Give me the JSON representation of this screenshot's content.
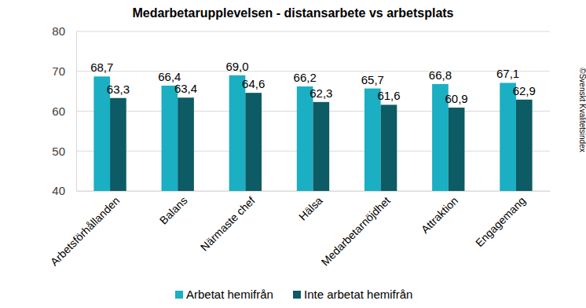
{
  "chart_data": {
    "type": "bar",
    "title": "Medarbetarupplevelsen - distansarbete vs arbetsplats",
    "categories": [
      "Arbetsförhållanden",
      "Balans",
      "Närmaste chef",
      "Hälsa",
      "Medarbetarnöjdhet",
      "Attraktion",
      "Engagemang"
    ],
    "series": [
      {
        "name": "Arbetat hemifrån",
        "color": "#1aafc3",
        "values": [
          68.7,
          66.4,
          69.0,
          66.2,
          65.7,
          66.8,
          67.1
        ],
        "value_labels": [
          "68,7",
          "66,4",
          "69,0",
          "66,2",
          "65,7",
          "66,8",
          "67,1"
        ]
      },
      {
        "name": "Inte arbetat hemifrån",
        "color": "#0d5b64",
        "values": [
          63.3,
          63.4,
          64.6,
          62.3,
          61.6,
          60.9,
          62.9
        ],
        "value_labels": [
          "63,3",
          "63,4",
          "64,6",
          "62,3",
          "61,6",
          "60,9",
          "62,9"
        ]
      }
    ],
    "ylim": [
      40,
      80
    ],
    "yticks": [
      40,
      50,
      60,
      70,
      80
    ],
    "grid": true,
    "legend": "bottom",
    "data_labels": true,
    "annotations": [
      "©Svenskt Kvalitetsindex"
    ]
  }
}
